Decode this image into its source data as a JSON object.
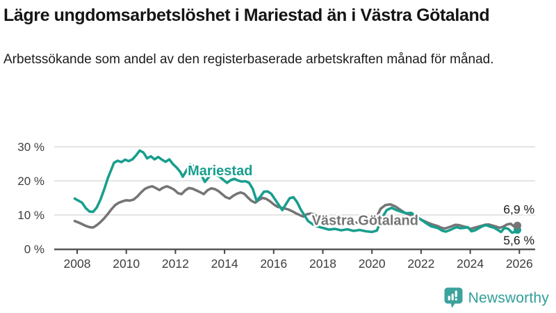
{
  "header": {
    "title": "Lägre ungdomsarbetslöshet i Mariestad än i Västra Götaland",
    "subtitle": "Arbetssökande som andel av den registerbaserade arbetskraften månad för månad."
  },
  "branding": {
    "name": "Newsworthy",
    "logo_icon": "speech-bubble-bar-chart",
    "logo_color": "#3ba29c",
    "text_color": "#2f9e98"
  },
  "chart_data": {
    "type": "line",
    "unit": "%",
    "grid": true,
    "x_axis": {
      "ticks": [
        2008,
        2010,
        2012,
        2014,
        2016,
        2018,
        2020,
        2022,
        2024,
        2026
      ]
    },
    "y_axis": {
      "ticks": [
        0,
        10,
        20,
        30
      ],
      "labels": [
        "0 %",
        "10 %",
        "20 %",
        "30 %"
      ],
      "range": [
        0,
        31
      ]
    },
    "colors": {
      "grid": "#dcdcdc",
      "axis": "#454545",
      "tick_text": "#3d3d3d",
      "annotation_text": "#1a1a1a"
    },
    "series": [
      {
        "name": "Mariestad",
        "color": "#189e8d",
        "end_label": "5,6 %",
        "end_value": 5.6,
        "label_at": {
          "x": 2012.5,
          "y": 21.6
        },
        "points": [
          [
            2007.9,
            14.8
          ],
          [
            2008.05,
            14.2
          ],
          [
            2008.2,
            13.6
          ],
          [
            2008.35,
            12.0
          ],
          [
            2008.5,
            11.0
          ],
          [
            2008.65,
            10.9
          ],
          [
            2008.8,
            12.2
          ],
          [
            2008.95,
            14.5
          ],
          [
            2009.1,
            17.5
          ],
          [
            2009.25,
            20.8
          ],
          [
            2009.4,
            23.5
          ],
          [
            2009.5,
            25.3
          ],
          [
            2009.65,
            25.9
          ],
          [
            2009.8,
            25.5
          ],
          [
            2009.95,
            26.2
          ],
          [
            2010.1,
            25.8
          ],
          [
            2010.25,
            26.3
          ],
          [
            2010.4,
            27.5
          ],
          [
            2010.55,
            28.9
          ],
          [
            2010.7,
            28.3
          ],
          [
            2010.85,
            26.6
          ],
          [
            2011.0,
            27.2
          ],
          [
            2011.15,
            26.3
          ],
          [
            2011.3,
            27.0
          ],
          [
            2011.45,
            26.2
          ],
          [
            2011.6,
            25.6
          ],
          [
            2011.75,
            26.3
          ],
          [
            2011.9,
            24.9
          ],
          [
            2012.05,
            23.9
          ],
          [
            2012.2,
            22.6
          ],
          [
            2012.3,
            21.2
          ],
          [
            2012.45,
            23.0
          ],
          [
            2012.6,
            24.8
          ],
          [
            2012.75,
            24.3
          ],
          [
            2012.9,
            23.2
          ],
          [
            2013.05,
            21.8
          ],
          [
            2013.2,
            19.7
          ],
          [
            2013.35,
            21.0
          ],
          [
            2013.5,
            22.3
          ],
          [
            2013.65,
            21.9
          ],
          [
            2013.8,
            21.2
          ],
          [
            2013.95,
            20.3
          ],
          [
            2014.1,
            19.4
          ],
          [
            2014.25,
            20.2
          ],
          [
            2014.4,
            20.6
          ],
          [
            2014.55,
            20.1
          ],
          [
            2014.7,
            19.8
          ],
          [
            2014.85,
            19.9
          ],
          [
            2015.0,
            19.4
          ],
          [
            2015.15,
            17.6
          ],
          [
            2015.3,
            14.2
          ],
          [
            2015.45,
            15.3
          ],
          [
            2015.6,
            16.8
          ],
          [
            2015.75,
            16.9
          ],
          [
            2015.9,
            16.2
          ],
          [
            2016.05,
            14.6
          ],
          [
            2016.2,
            13.0
          ],
          [
            2016.35,
            11.4
          ],
          [
            2016.5,
            13.2
          ],
          [
            2016.65,
            14.9
          ],
          [
            2016.8,
            15.2
          ],
          [
            2016.95,
            13.8
          ],
          [
            2017.1,
            11.6
          ],
          [
            2017.25,
            9.9
          ],
          [
            2017.4,
            8.2
          ],
          [
            2017.6,
            7.2
          ],
          [
            2017.8,
            6.6
          ],
          [
            2018.0,
            6.2
          ],
          [
            2018.25,
            5.7
          ],
          [
            2018.5,
            5.9
          ],
          [
            2018.75,
            5.5
          ],
          [
            2019.0,
            5.8
          ],
          [
            2019.25,
            5.3
          ],
          [
            2019.5,
            5.6
          ],
          [
            2019.75,
            5.2
          ],
          [
            2020.0,
            5.0
          ],
          [
            2020.2,
            5.4
          ],
          [
            2020.4,
            9.0
          ],
          [
            2020.6,
            11.4
          ],
          [
            2020.8,
            12.1
          ],
          [
            2021.0,
            11.4
          ],
          [
            2021.2,
            10.9
          ],
          [
            2021.4,
            10.5
          ],
          [
            2021.6,
            10.6
          ],
          [
            2021.8,
            9.6
          ],
          [
            2022.0,
            8.6
          ],
          [
            2022.2,
            7.6
          ],
          [
            2022.4,
            6.7
          ],
          [
            2022.55,
            6.4
          ],
          [
            2022.7,
            6.1
          ],
          [
            2022.85,
            5.4
          ],
          [
            2023.0,
            5.1
          ],
          [
            2023.15,
            5.5
          ],
          [
            2023.3,
            6.0
          ],
          [
            2023.45,
            6.4
          ],
          [
            2023.6,
            6.1
          ],
          [
            2023.75,
            6.2
          ],
          [
            2023.9,
            6.4
          ],
          [
            2024.05,
            5.2
          ],
          [
            2024.2,
            5.5
          ],
          [
            2024.35,
            6.1
          ],
          [
            2024.5,
            6.7
          ],
          [
            2024.65,
            7.0
          ],
          [
            2024.8,
            6.6
          ],
          [
            2024.95,
            6.3
          ],
          [
            2025.1,
            5.7
          ],
          [
            2025.25,
            5.0
          ],
          [
            2025.4,
            6.2
          ],
          [
            2025.55,
            5.9
          ],
          [
            2025.7,
            4.8
          ],
          [
            2025.83,
            5.0
          ],
          [
            2025.92,
            5.6
          ]
        ]
      },
      {
        "name": "Västra Götaland",
        "color": "#757575",
        "end_label": "6,9 %",
        "end_value": 6.9,
        "label_at": {
          "x": 2017.55,
          "y": 7.0
        },
        "points": [
          [
            2007.9,
            8.2
          ],
          [
            2008.05,
            7.8
          ],
          [
            2008.2,
            7.3
          ],
          [
            2008.35,
            6.8
          ],
          [
            2008.5,
            6.4
          ],
          [
            2008.65,
            6.3
          ],
          [
            2008.8,
            7.0
          ],
          [
            2008.95,
            7.9
          ],
          [
            2009.1,
            9.0
          ],
          [
            2009.25,
            10.3
          ],
          [
            2009.4,
            11.7
          ],
          [
            2009.55,
            12.9
          ],
          [
            2009.7,
            13.6
          ],
          [
            2009.85,
            14.0
          ],
          [
            2010.0,
            14.3
          ],
          [
            2010.15,
            14.2
          ],
          [
            2010.3,
            14.5
          ],
          [
            2010.45,
            15.4
          ],
          [
            2010.6,
            16.6
          ],
          [
            2010.75,
            17.6
          ],
          [
            2010.9,
            18.1
          ],
          [
            2011.05,
            18.4
          ],
          [
            2011.2,
            17.9
          ],
          [
            2011.35,
            17.3
          ],
          [
            2011.5,
            18.0
          ],
          [
            2011.65,
            18.4
          ],
          [
            2011.8,
            18.0
          ],
          [
            2011.95,
            17.4
          ],
          [
            2012.1,
            16.4
          ],
          [
            2012.25,
            16.1
          ],
          [
            2012.4,
            17.2
          ],
          [
            2012.55,
            17.9
          ],
          [
            2012.7,
            17.7
          ],
          [
            2012.85,
            17.2
          ],
          [
            2013.0,
            16.7
          ],
          [
            2013.15,
            16.1
          ],
          [
            2013.3,
            17.2
          ],
          [
            2013.45,
            17.8
          ],
          [
            2013.6,
            17.6
          ],
          [
            2013.75,
            17.0
          ],
          [
            2013.9,
            16.1
          ],
          [
            2014.05,
            15.2
          ],
          [
            2014.2,
            14.8
          ],
          [
            2014.35,
            15.6
          ],
          [
            2014.5,
            16.2
          ],
          [
            2014.65,
            16.6
          ],
          [
            2014.8,
            16.2
          ],
          [
            2014.95,
            15.1
          ],
          [
            2015.1,
            14.1
          ],
          [
            2015.25,
            13.6
          ],
          [
            2015.4,
            14.4
          ],
          [
            2015.55,
            15.0
          ],
          [
            2015.7,
            14.7
          ],
          [
            2015.85,
            14.0
          ],
          [
            2016.0,
            13.1
          ],
          [
            2016.15,
            12.4
          ],
          [
            2016.3,
            12.1
          ],
          [
            2016.45,
            11.9
          ],
          [
            2016.6,
            11.6
          ],
          [
            2016.75,
            11.1
          ],
          [
            2016.9,
            10.5
          ],
          [
            2017.05,
            10.0
          ],
          [
            2017.2,
            9.5
          ],
          [
            2017.35,
            10.2
          ],
          [
            2017.5,
            10.4
          ],
          [
            2017.65,
            10.1
          ],
          [
            2017.8,
            9.5
          ],
          [
            2017.95,
            9.0
          ],
          [
            2018.2,
            8.6
          ],
          [
            2018.45,
            8.4
          ],
          [
            2018.7,
            8.2
          ],
          [
            2018.95,
            8.0
          ],
          [
            2019.2,
            7.8
          ],
          [
            2019.45,
            7.7
          ],
          [
            2019.7,
            7.9
          ],
          [
            2019.95,
            8.1
          ],
          [
            2020.15,
            8.8
          ],
          [
            2020.35,
            11.8
          ],
          [
            2020.55,
            12.9
          ],
          [
            2020.75,
            13.1
          ],
          [
            2020.95,
            12.5
          ],
          [
            2021.15,
            11.5
          ],
          [
            2021.35,
            10.6
          ],
          [
            2021.55,
            10.0
          ],
          [
            2021.75,
            9.4
          ],
          [
            2021.95,
            8.8
          ],
          [
            2022.15,
            8.1
          ],
          [
            2022.35,
            7.5
          ],
          [
            2022.5,
            7.1
          ],
          [
            2022.65,
            6.8
          ],
          [
            2022.8,
            6.3
          ],
          [
            2022.95,
            6.0
          ],
          [
            2023.1,
            6.3
          ],
          [
            2023.25,
            6.7
          ],
          [
            2023.4,
            7.1
          ],
          [
            2023.55,
            7.0
          ],
          [
            2023.7,
            6.7
          ],
          [
            2023.85,
            6.4
          ],
          [
            2024.0,
            5.9
          ],
          [
            2024.15,
            6.2
          ],
          [
            2024.3,
            6.5
          ],
          [
            2024.45,
            6.8
          ],
          [
            2024.6,
            7.1
          ],
          [
            2024.75,
            7.2
          ],
          [
            2024.9,
            6.9
          ],
          [
            2025.05,
            6.6
          ],
          [
            2025.2,
            6.2
          ],
          [
            2025.35,
            6.6
          ],
          [
            2025.5,
            7.2
          ],
          [
            2025.65,
            7.4
          ],
          [
            2025.8,
            6.5
          ],
          [
            2025.92,
            6.9
          ]
        ]
      }
    ]
  }
}
